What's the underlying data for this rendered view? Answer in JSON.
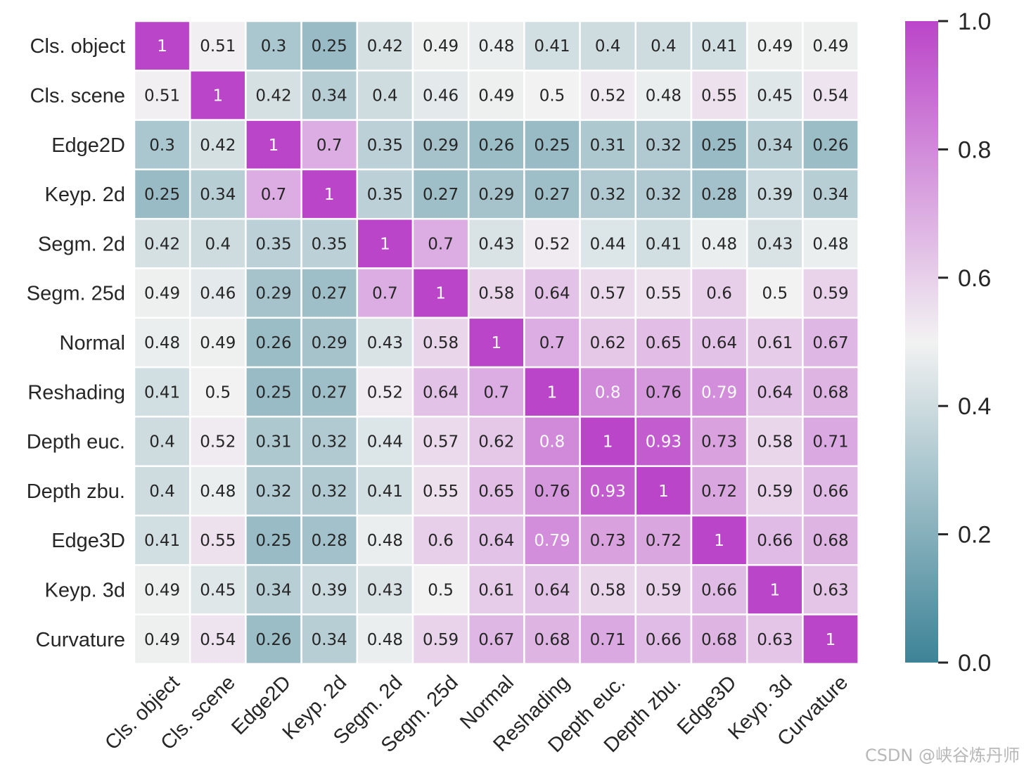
{
  "watermark": "CSDN @峡谷炼丹师",
  "colors": {
    "low": "#3d8397",
    "mid": "#f2f2f2",
    "high": "#bb45c9",
    "grid": "#ffffff"
  },
  "chart_data": {
    "type": "heatmap",
    "row_labels": [
      "Cls. object",
      "Cls. scene",
      "Edge2D",
      "Keyp. 2d",
      "Segm. 2d",
      "Segm. 25d",
      "Normal",
      "Reshading",
      "Depth euc.",
      "Depth zbu.",
      "Edge3D",
      "Keyp. 3d",
      "Curvature"
    ],
    "col_labels": [
      "Cls. object",
      "Cls. scene",
      "Edge2D",
      "Keyp. 2d",
      "Segm. 2d",
      "Segm. 25d",
      "Normal",
      "Reshading",
      "Depth euc.",
      "Depth zbu.",
      "Edge3D",
      "Keyp. 3d",
      "Curvature"
    ],
    "values": [
      [
        1,
        0.51,
        0.3,
        0.25,
        0.42,
        0.49,
        0.48,
        0.41,
        0.4,
        0.4,
        0.41,
        0.49,
        0.49
      ],
      [
        0.51,
        1,
        0.42,
        0.34,
        0.4,
        0.46,
        0.49,
        0.5,
        0.52,
        0.48,
        0.55,
        0.45,
        0.54
      ],
      [
        0.3,
        0.42,
        1,
        0.7,
        0.35,
        0.29,
        0.26,
        0.25,
        0.31,
        0.32,
        0.25,
        0.34,
        0.26
      ],
      [
        0.25,
        0.34,
        0.7,
        1,
        0.35,
        0.27,
        0.29,
        0.27,
        0.32,
        0.32,
        0.28,
        0.39,
        0.34
      ],
      [
        0.42,
        0.4,
        0.35,
        0.35,
        1,
        0.7,
        0.43,
        0.52,
        0.44,
        0.41,
        0.48,
        0.43,
        0.48
      ],
      [
        0.49,
        0.46,
        0.29,
        0.27,
        0.7,
        1,
        0.58,
        0.64,
        0.57,
        0.55,
        0.6,
        0.5,
        0.59
      ],
      [
        0.48,
        0.49,
        0.26,
        0.29,
        0.43,
        0.58,
        1,
        0.7,
        0.62,
        0.65,
        0.64,
        0.61,
        0.67
      ],
      [
        0.41,
        0.5,
        0.25,
        0.27,
        0.52,
        0.64,
        0.7,
        1,
        0.8,
        0.76,
        0.79,
        0.64,
        0.68
      ],
      [
        0.4,
        0.52,
        0.31,
        0.32,
        0.44,
        0.57,
        0.62,
        0.8,
        1,
        0.93,
        0.73,
        0.58,
        0.71
      ],
      [
        0.4,
        0.48,
        0.32,
        0.32,
        0.41,
        0.55,
        0.65,
        0.76,
        0.93,
        1,
        0.72,
        0.59,
        0.66
      ],
      [
        0.41,
        0.55,
        0.25,
        0.28,
        0.48,
        0.6,
        0.64,
        0.79,
        0.73,
        0.72,
        1,
        0.66,
        0.68
      ],
      [
        0.49,
        0.45,
        0.34,
        0.39,
        0.43,
        0.5,
        0.61,
        0.64,
        0.58,
        0.59,
        0.66,
        1,
        0.63
      ],
      [
        0.49,
        0.54,
        0.26,
        0.34,
        0.48,
        0.59,
        0.67,
        0.68,
        0.71,
        0.66,
        0.68,
        0.63,
        1
      ]
    ],
    "value_labels": [
      [
        "1",
        "0.51",
        "0.3",
        "0.25",
        "0.42",
        "0.49",
        "0.48",
        "0.41",
        "0.4",
        "0.4",
        "0.41",
        "0.49",
        "0.49"
      ],
      [
        "0.51",
        "1",
        "0.42",
        "0.34",
        "0.4",
        "0.46",
        "0.49",
        "0.5",
        "0.52",
        "0.48",
        "0.55",
        "0.45",
        "0.54"
      ],
      [
        "0.3",
        "0.42",
        "1",
        "0.7",
        "0.35",
        "0.29",
        "0.26",
        "0.25",
        "0.31",
        "0.32",
        "0.25",
        "0.34",
        "0.26"
      ],
      [
        "0.25",
        "0.34",
        "0.7",
        "1",
        "0.35",
        "0.27",
        "0.29",
        "0.27",
        "0.32",
        "0.32",
        "0.28",
        "0.39",
        "0.34"
      ],
      [
        "0.42",
        "0.4",
        "0.35",
        "0.35",
        "1",
        "0.7",
        "0.43",
        "0.52",
        "0.44",
        "0.41",
        "0.48",
        "0.43",
        "0.48"
      ],
      [
        "0.49",
        "0.46",
        "0.29",
        "0.27",
        "0.7",
        "1",
        "0.58",
        "0.64",
        "0.57",
        "0.55",
        "0.6",
        "0.5",
        "0.59"
      ],
      [
        "0.48",
        "0.49",
        "0.26",
        "0.29",
        "0.43",
        "0.58",
        "1",
        "0.7",
        "0.62",
        "0.65",
        "0.64",
        "0.61",
        "0.67"
      ],
      [
        "0.41",
        "0.5",
        "0.25",
        "0.27",
        "0.52",
        "0.64",
        "0.7",
        "1",
        "0.8",
        "0.76",
        "0.79",
        "0.64",
        "0.68"
      ],
      [
        "0.4",
        "0.52",
        "0.31",
        "0.32",
        "0.44",
        "0.57",
        "0.62",
        "0.8",
        "1",
        "0.93",
        "0.73",
        "0.58",
        "0.71"
      ],
      [
        "0.4",
        "0.48",
        "0.32",
        "0.32",
        "0.41",
        "0.55",
        "0.65",
        "0.76",
        "0.93",
        "1",
        "0.72",
        "0.59",
        "0.66"
      ],
      [
        "0.41",
        "0.55",
        "0.25",
        "0.28",
        "0.48",
        "0.6",
        "0.64",
        "0.79",
        "0.73",
        "0.72",
        "1",
        "0.66",
        "0.68"
      ],
      [
        "0.49",
        "0.45",
        "0.34",
        "0.39",
        "0.43",
        "0.5",
        "0.61",
        "0.64",
        "0.58",
        "0.59",
        "0.66",
        "1",
        "0.63"
      ],
      [
        "0.49",
        "0.54",
        "0.26",
        "0.34",
        "0.48",
        "0.59",
        "0.67",
        "0.68",
        "0.71",
        "0.66",
        "0.68",
        "0.63",
        "1"
      ]
    ],
    "colorbar": {
      "range": [
        0.0,
        1.0
      ],
      "ticks": [
        0.0,
        0.2,
        0.4,
        0.6,
        0.8,
        1.0
      ],
      "tick_labels": [
        "0.0",
        "0.2",
        "0.4",
        "0.6",
        "0.8",
        "1.0"
      ]
    }
  }
}
